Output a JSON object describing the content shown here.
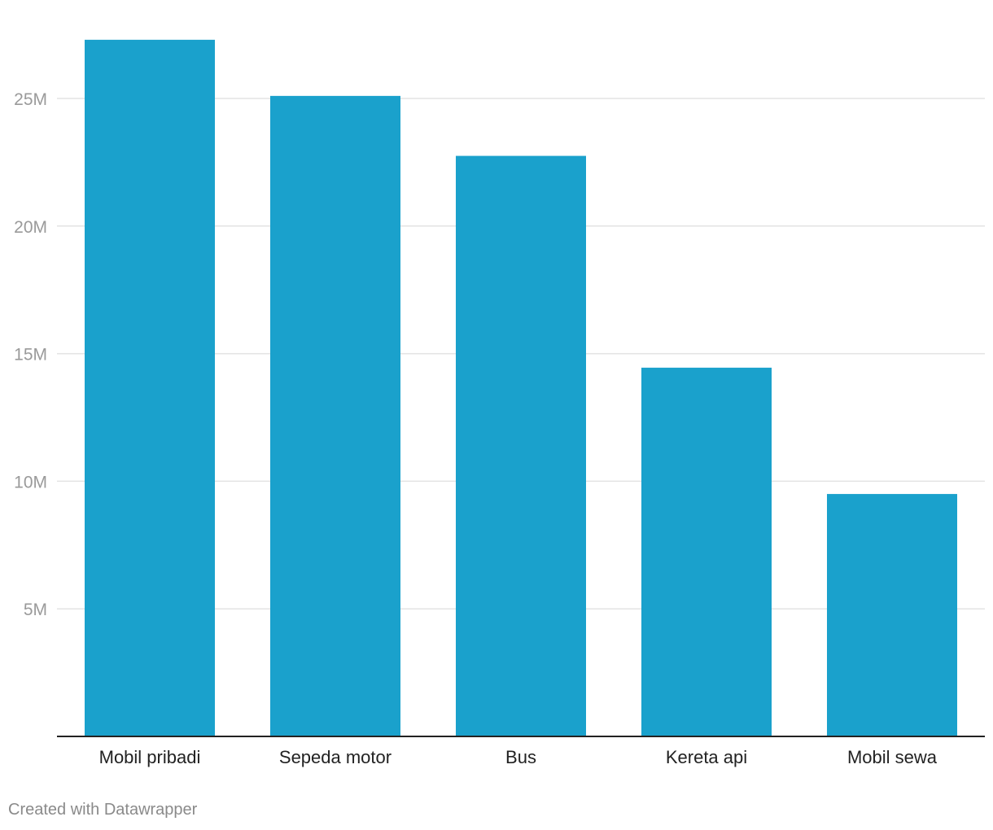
{
  "chart_data": {
    "type": "bar",
    "title": "",
    "xlabel": "",
    "ylabel": "",
    "categories": [
      "Mobil pribadi",
      "Sepeda motor",
      "Bus",
      "Kereta api",
      "Mobil sewa"
    ],
    "values": [
      27300000,
      25100000,
      22750000,
      14450000,
      9500000
    ],
    "ylim": [
      0,
      27500000
    ],
    "yticks": [
      5000000,
      10000000,
      15000000,
      20000000,
      25000000
    ],
    "ytick_labels": [
      "5M",
      "10M",
      "15M",
      "20M",
      "25M"
    ],
    "grid": true,
    "legend": "none",
    "colors": {
      "bar": "#1aa1cc",
      "grid": "#e3e3e3",
      "axis": "#222222"
    }
  },
  "credit": "Created with Datawrapper"
}
